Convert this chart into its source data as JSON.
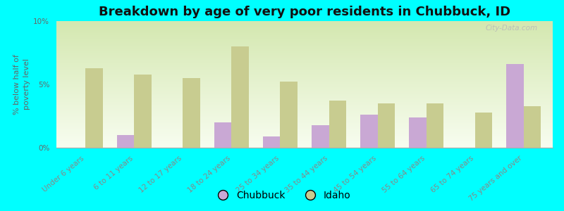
{
  "title": "Breakdown by age of very poor residents in Chubbuck, ID",
  "ylabel": "% below half of\npoverty level",
  "categories": [
    "Under 6 years",
    "6 to 11 years",
    "12 to 17 years",
    "18 to 24 years",
    "25 to 34 years",
    "35 to 44 years",
    "45 to 54 years",
    "55 to 64 years",
    "65 to 74 years",
    "75 years and over"
  ],
  "chubbuck_values": [
    0.0,
    1.0,
    0.0,
    2.0,
    0.9,
    1.8,
    2.6,
    2.4,
    0.0,
    6.6
  ],
  "idaho_values": [
    6.3,
    5.8,
    5.5,
    8.0,
    5.2,
    3.7,
    3.5,
    3.5,
    2.8,
    3.3
  ],
  "chubbuck_color": "#c9a8d4",
  "idaho_color": "#c8cc90",
  "background_color": "#00ffff",
  "plot_bg_top": "#d4e8b0",
  "plot_bg_bottom": "#f8fdf0",
  "title_fontsize": 13,
  "ylabel_fontsize": 8,
  "tick_fontsize": 7.5,
  "legend_fontsize": 10,
  "ylim_max": 10,
  "bar_width": 0.35,
  "watermark": "City-Data.com"
}
